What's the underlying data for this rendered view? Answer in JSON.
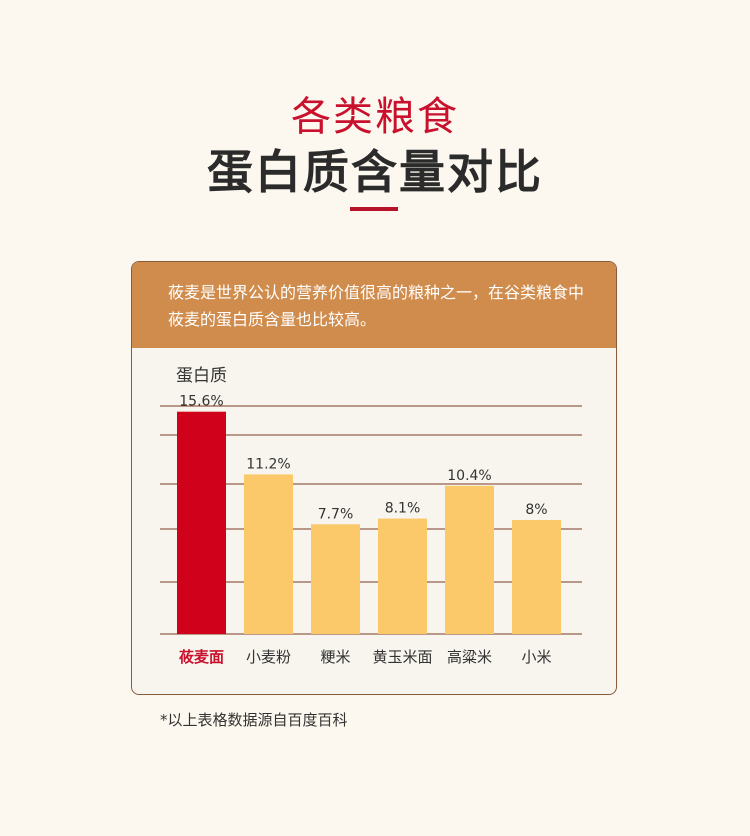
{
  "header": {
    "subtitle": "各类粮食",
    "title": "蛋白质含量对比"
  },
  "card": {
    "description": "莜麦是世界公认的营养价值很高的粮种之一，在谷类粮食中莜麦的蛋白质含量也比较高。"
  },
  "footnote": "*以上表格数据源自百度百科",
  "chart_data": {
    "type": "bar",
    "ylabel": "蛋白质",
    "categories": [
      "莜麦面",
      "小麦粉",
      "粳米",
      "黄玉米面",
      "高粱米",
      "小米"
    ],
    "values": [
      15.6,
      11.2,
      7.7,
      8.1,
      10.4,
      8
    ],
    "value_labels": [
      "15.6%",
      "11.2%",
      "7.7%",
      "8.1%",
      "10.4%",
      "8%"
    ],
    "unit": "%",
    "highlight_index": 0,
    "ylim": [
      0,
      16
    ],
    "grid": true,
    "colors": {
      "highlight": "#d0021b",
      "bar": "#fbc96a",
      "grid": "#7a3b26",
      "highlight_label": "#c9102c",
      "label": "#333333"
    }
  }
}
